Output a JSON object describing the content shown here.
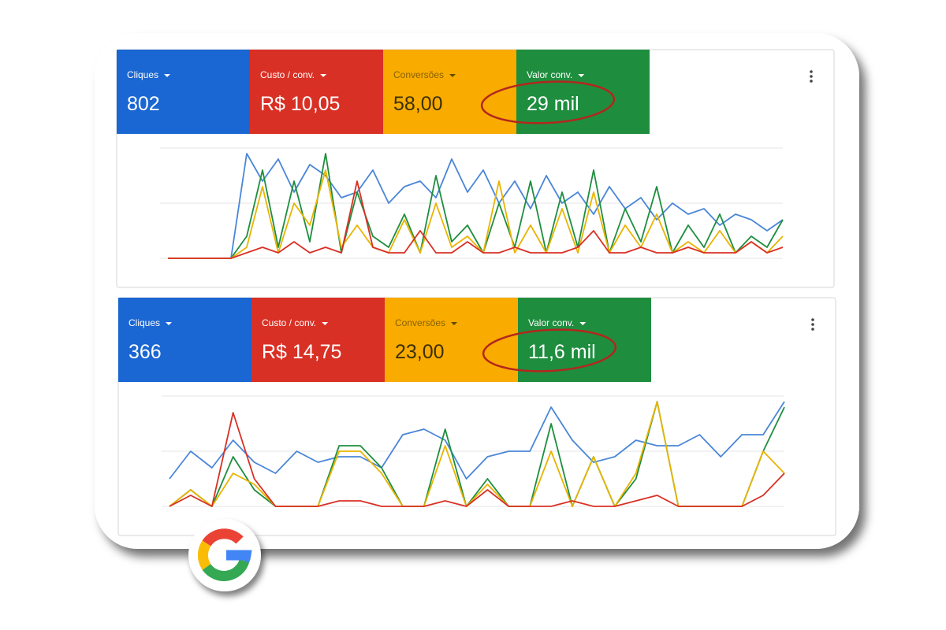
{
  "panels": [
    {
      "metrics": [
        {
          "label": "Cliques",
          "value": "802",
          "color": "#1a66d2"
        },
        {
          "label": "Custo / conv.",
          "value": "R$ 10,05",
          "color": "#d93025"
        },
        {
          "label": "Conversões",
          "value": "58,00",
          "color": "#f9ab00"
        },
        {
          "label": "Valor conv.",
          "value": "29 mil",
          "color": "#1e8e3e"
        }
      ],
      "chart": {
        "type": "line",
        "ylim": [
          0,
          100
        ],
        "grid_lines": [
          0,
          50,
          100
        ],
        "series": [
          {
            "color": "#4a86d8",
            "values": [
              0,
              0,
              0,
              0,
              0,
              95,
              70,
              90,
              60,
              85,
              75,
              55,
              60,
              80,
              50,
              65,
              70,
              55,
              90,
              60,
              80,
              50,
              70,
              45,
              75,
              50,
              60,
              40,
              65,
              45,
              55,
              35,
              50,
              40,
              45,
              30,
              40,
              35,
              25,
              35
            ]
          },
          {
            "color": "#1e8e3e",
            "values": [
              0,
              0,
              0,
              0,
              0,
              20,
              80,
              10,
              70,
              15,
              95,
              5,
              60,
              20,
              10,
              40,
              5,
              75,
              15,
              30,
              5,
              50,
              10,
              70,
              5,
              60,
              10,
              80,
              5,
              45,
              15,
              65,
              5,
              30,
              10,
              40,
              5,
              20,
              10,
              35
            ]
          },
          {
            "color": "#e8b400",
            "values": [
              0,
              0,
              0,
              0,
              0,
              10,
              65,
              5,
              50,
              30,
              80,
              10,
              30,
              10,
              5,
              35,
              5,
              50,
              10,
              20,
              5,
              70,
              5,
              30,
              5,
              45,
              5,
              60,
              5,
              30,
              10,
              40,
              5,
              15,
              5,
              25,
              5,
              15,
              5,
              20
            ]
          },
          {
            "color": "#d93025",
            "values": [
              0,
              0,
              0,
              0,
              0,
              5,
              10,
              5,
              15,
              5,
              10,
              5,
              70,
              10,
              5,
              5,
              25,
              5,
              5,
              15,
              5,
              5,
              10,
              5,
              5,
              5,
              10,
              25,
              5,
              5,
              10,
              5,
              5,
              10,
              5,
              5,
              5,
              15,
              5,
              10
            ]
          }
        ]
      }
    },
    {
      "metrics": [
        {
          "label": "Cliques",
          "value": "366",
          "color": "#1a66d2"
        },
        {
          "label": "Custo / conv.",
          "value": "R$ 14,75",
          "color": "#d93025"
        },
        {
          "label": "Conversões",
          "value": "23,00",
          "color": "#f9ab00"
        },
        {
          "label": "Valor conv.",
          "value": "11,6 mil",
          "color": "#1e8e3e"
        }
      ],
      "chart": {
        "type": "line",
        "ylim": [
          0,
          100
        ],
        "grid_lines": [
          0,
          50,
          100
        ],
        "series": [
          {
            "color": "#4a86d8",
            "values": [
              25,
              50,
              35,
              60,
              40,
              30,
              50,
              40,
              45,
              45,
              35,
              65,
              70,
              60,
              25,
              45,
              50,
              50,
              90,
              60,
              40,
              45,
              60,
              55,
              55,
              65,
              45,
              65,
              65,
              95
            ]
          },
          {
            "color": "#1e8e3e",
            "values": [
              0,
              15,
              0,
              45,
              15,
              0,
              0,
              0,
              55,
              55,
              35,
              0,
              0,
              70,
              0,
              25,
              0,
              0,
              75,
              0,
              45,
              0,
              25,
              95,
              0,
              0,
              0,
              0,
              50,
              90
            ]
          },
          {
            "color": "#e8b400",
            "values": [
              0,
              15,
              0,
              30,
              20,
              0,
              0,
              0,
              50,
              50,
              30,
              0,
              0,
              55,
              0,
              20,
              0,
              0,
              50,
              0,
              45,
              0,
              30,
              95,
              0,
              0,
              0,
              0,
              50,
              30
            ]
          },
          {
            "color": "#d93025",
            "values": [
              0,
              10,
              0,
              85,
              25,
              0,
              0,
              0,
              5,
              5,
              0,
              0,
              0,
              5,
              0,
              15,
              0,
              0,
              0,
              5,
              0,
              0,
              5,
              10,
              0,
              0,
              0,
              0,
              10,
              30
            ]
          }
        ]
      }
    }
  ]
}
